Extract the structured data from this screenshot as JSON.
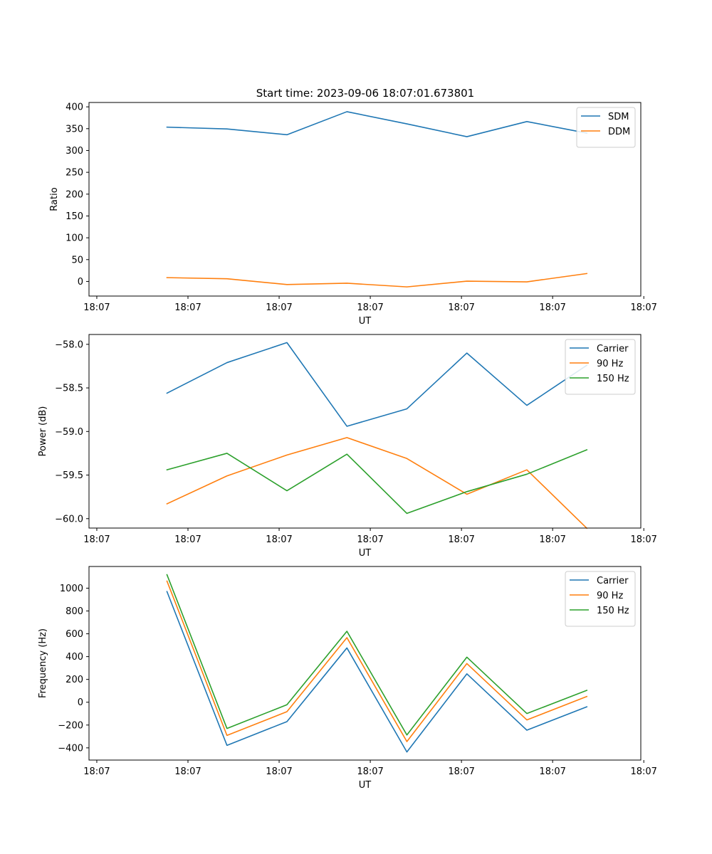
{
  "title": "Start time: 2023-09-06 18:07:01.673801",
  "colors": {
    "blue": "#1f77b4",
    "orange": "#ff7f0e",
    "green": "#2ca02c"
  },
  "chart_data": [
    {
      "type": "line",
      "title": "Start time: 2023-09-06 18:07:01.673801",
      "xlabel": "UT",
      "ylabel": "Ratio",
      "x": [
        1.3,
        2.3,
        3.3,
        4.3,
        5.3,
        6.3,
        7.3,
        8.3
      ],
      "xlim": [
        0,
        9.2
      ],
      "x_ticks": [
        0.13,
        1.65,
        3.17,
        4.69,
        6.21,
        7.73,
        9.25
      ],
      "x_tick_labels": [
        "18:07",
        "18:07",
        "18:07",
        "18:07",
        "18:07",
        "18:07",
        "18:07"
      ],
      "ylim": [
        -33.5,
        410
      ],
      "y_ticks": [
        0,
        50,
        100,
        150,
        200,
        250,
        300,
        350,
        400
      ],
      "y_tick_labels": [
        "0",
        "50",
        "100",
        "150",
        "200",
        "250",
        "300",
        "350",
        "400"
      ],
      "legend": "top-right",
      "series": [
        {
          "name": "SDM",
          "color": "#1f77b4",
          "values": [
            353.5,
            349.3,
            336.1,
            388.9,
            361.0,
            331.6,
            366.3,
            339.8
          ]
        },
        {
          "name": "DDM",
          "color": "#ff7f0e",
          "values": [
            8.7,
            6.1,
            -7.1,
            -4.1,
            -12.5,
            0.7,
            -1.0,
            18.1
          ]
        }
      ]
    },
    {
      "type": "line",
      "title": "",
      "xlabel": "UT",
      "ylabel": "Power (dB)",
      "x": [
        1.3,
        2.3,
        3.3,
        4.3,
        5.3,
        6.3,
        7.3,
        8.3
      ],
      "xlim": [
        0,
        9.2
      ],
      "x_ticks": [
        0.13,
        1.65,
        3.17,
        4.69,
        6.21,
        7.73,
        9.25
      ],
      "x_tick_labels": [
        "18:07",
        "18:07",
        "18:07",
        "18:07",
        "18:07",
        "18:07",
        "18:07"
      ],
      "ylim": [
        -60.108,
        -57.887
      ],
      "y_ticks": [
        -60.0,
        -59.5,
        -59.0,
        -58.5,
        -58.0
      ],
      "y_tick_labels": [
        "−60.0",
        "−59.5",
        "−59.0",
        "−58.5",
        "−58.0"
      ],
      "legend": "top-right",
      "series": [
        {
          "name": "Carrier",
          "color": "#1f77b4",
          "values": [
            -58.56,
            -58.21,
            -57.98,
            -58.94,
            -58.74,
            -58.1,
            -58.7,
            -58.24
          ]
        },
        {
          "name": "90 Hz",
          "color": "#ff7f0e",
          "values": [
            -59.83,
            -59.51,
            -59.27,
            -59.07,
            -59.31,
            -59.72,
            -59.44,
            -60.11
          ]
        },
        {
          "name": "150 Hz",
          "color": "#2ca02c",
          "values": [
            -59.44,
            -59.25,
            -59.68,
            -59.26,
            -59.94,
            -59.69,
            -59.49,
            -59.21
          ]
        }
      ]
    },
    {
      "type": "line",
      "title": "",
      "xlabel": "UT",
      "ylabel": "Frequency (Hz)",
      "x": [
        1.3,
        2.3,
        3.3,
        4.3,
        5.3,
        6.3,
        7.3,
        8.3
      ],
      "xlim": [
        0,
        9.2
      ],
      "x_ticks": [
        0.13,
        1.65,
        3.17,
        4.69,
        6.21,
        7.73,
        9.25
      ],
      "x_tick_labels": [
        "18:07",
        "18:07",
        "18:07",
        "18:07",
        "18:07",
        "18:07",
        "18:07"
      ],
      "ylim": [
        -507,
        1190
      ],
      "y_ticks": [
        -400,
        -200,
        0,
        200,
        400,
        600,
        800,
        1000
      ],
      "y_tick_labels": [
        "−400",
        "−200",
        "0",
        "200",
        "400",
        "600",
        "800",
        "1000"
      ],
      "legend": "top-right",
      "series": [
        {
          "name": "Carrier",
          "color": "#1f77b4",
          "values": [
            970,
            -378,
            -170,
            476,
            -436,
            249,
            -245,
            -40
          ]
        },
        {
          "name": "90 Hz",
          "color": "#ff7f0e",
          "values": [
            1062,
            -291,
            -83,
            566,
            -345,
            339,
            -155,
            50
          ]
        },
        {
          "name": "150 Hz",
          "color": "#2ca02c",
          "values": [
            1118,
            -230,
            -22,
            622,
            -287,
            395,
            -99,
            104
          ]
        }
      ]
    }
  ]
}
